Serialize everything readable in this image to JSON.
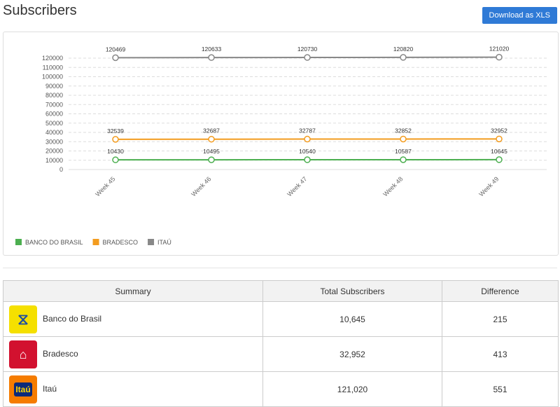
{
  "header": {
    "title": "Subscribers",
    "download_label": "Download as XLS"
  },
  "chart_data": {
    "type": "line",
    "categories": [
      "Week 45",
      "Week 46",
      "Week 47",
      "Week 48",
      "Week 49"
    ],
    "ylim": [
      0,
      120000
    ],
    "yticks": [
      0,
      10000,
      20000,
      30000,
      40000,
      50000,
      60000,
      70000,
      80000,
      90000,
      100000,
      110000,
      120000
    ],
    "grid": true,
    "legend": "bottom-left",
    "series": [
      {
        "name": "BANCO DO BRASIL",
        "color": "#4caf50",
        "values": [
          10430,
          10495,
          10540,
          10587,
          10645
        ]
      },
      {
        "name": "BRADESCO",
        "color": "#f39c1f",
        "values": [
          32539,
          32687,
          32787,
          32852,
          32952
        ]
      },
      {
        "name": "ITAÚ",
        "color": "#888888",
        "values": [
          120469,
          120633,
          120730,
          120820,
          121020
        ]
      }
    ]
  },
  "table": {
    "headers": [
      "Summary",
      "Total Subscribers",
      "Difference"
    ],
    "rows": [
      {
        "name": "Banco do Brasil",
        "total": "10,645",
        "diff": "215",
        "logo": "bb-logo",
        "logo_text": ""
      },
      {
        "name": "Bradesco",
        "total": "32,952",
        "diff": "413",
        "logo": "bradesco-logo",
        "logo_text": ""
      },
      {
        "name": "Itaú",
        "total": "121,020",
        "diff": "551",
        "logo": "itau-logo",
        "logo_text": "Itaú"
      }
    ]
  }
}
